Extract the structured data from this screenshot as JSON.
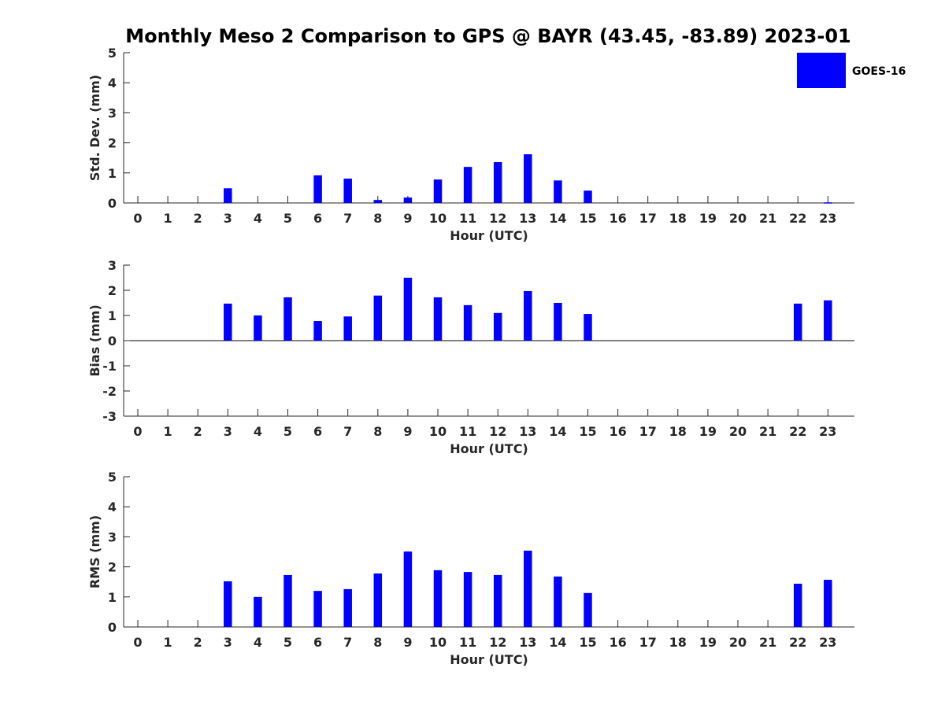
{
  "chart_data": {
    "title": "Monthly Meso 2 Comparison to GPS @ BAYR (43.45, -83.89) 2023-01",
    "legend": {
      "label": "GOES-16",
      "color": "#0000ff",
      "placement": "top-right"
    },
    "bar_color": "#0000ff",
    "panels": [
      {
        "type": "bar",
        "xlabel": "Hour (UTC)",
        "ylabel": "Std. Dev. (mm)",
        "ylim": [
          0,
          5
        ],
        "yticks": [
          "0",
          "1",
          "2",
          "3",
          "4",
          "5"
        ],
        "xticks": [
          "0",
          "1",
          "2",
          "3",
          "4",
          "5",
          "6",
          "7",
          "8",
          "9",
          "10",
          "11",
          "12",
          "13",
          "14",
          "15",
          "16",
          "17",
          "18",
          "19",
          "20",
          "21",
          "22",
          "23"
        ],
        "values": [
          0,
          0,
          0,
          0.49,
          0,
          0,
          0.92,
          0.81,
          0.1,
          0.18,
          0.78,
          1.2,
          1.36,
          1.62,
          0.75,
          0.41,
          0,
          0,
          0,
          0,
          0,
          0,
          0,
          0.02
        ]
      },
      {
        "type": "bar",
        "xlabel": "Hour (UTC)",
        "ylabel": "Bias (mm)",
        "ylim": [
          -3,
          3
        ],
        "yticks": [
          "-3",
          "-2",
          "-1",
          "0",
          "1",
          "2",
          "3"
        ],
        "xticks": [
          "0",
          "1",
          "2",
          "3",
          "4",
          "5",
          "6",
          "7",
          "8",
          "9",
          "10",
          "11",
          "12",
          "13",
          "14",
          "15",
          "16",
          "17",
          "18",
          "19",
          "20",
          "21",
          "22",
          "23"
        ],
        "zero_line": true,
        "values": [
          0,
          0,
          0,
          1.47,
          1.0,
          1.72,
          0.78,
          0.96,
          1.79,
          2.5,
          1.72,
          1.41,
          1.1,
          1.97,
          1.5,
          1.06,
          0,
          0,
          0,
          0,
          0,
          0,
          1.47,
          1.6
        ]
      },
      {
        "type": "bar",
        "xlabel": "Hour (UTC)",
        "ylabel": "RMS (mm)",
        "ylim": [
          0,
          5
        ],
        "yticks": [
          "0",
          "1",
          "2",
          "3",
          "4",
          "5"
        ],
        "xticks": [
          "0",
          "1",
          "2",
          "3",
          "4",
          "5",
          "6",
          "7",
          "8",
          "9",
          "10",
          "11",
          "12",
          "13",
          "14",
          "15",
          "16",
          "17",
          "18",
          "19",
          "20",
          "21",
          "22",
          "23"
        ],
        "values": [
          0,
          0,
          0,
          1.52,
          1.0,
          1.73,
          1.2,
          1.26,
          1.78,
          2.51,
          1.89,
          1.83,
          1.73,
          2.54,
          1.68,
          1.13,
          0,
          0,
          0,
          0,
          0,
          0,
          1.44,
          1.57
        ]
      }
    ]
  }
}
